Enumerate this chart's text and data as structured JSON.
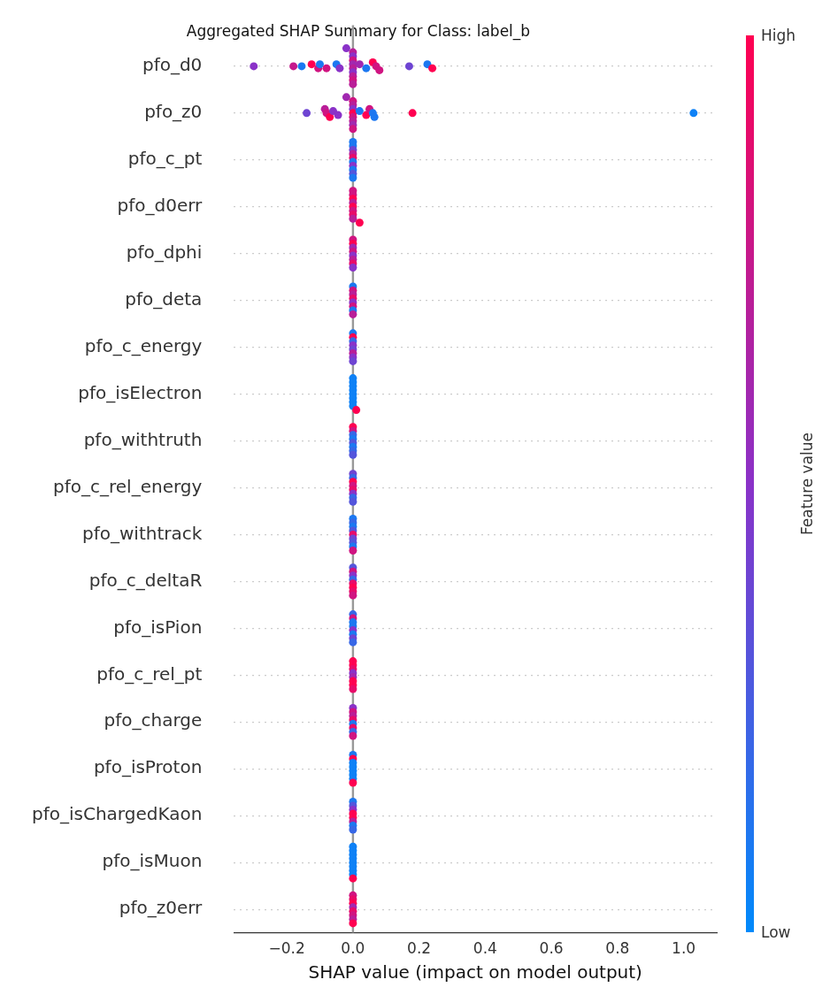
{
  "chart_data": {
    "type": "scatter",
    "orientation": "horizontal",
    "title": "Aggregated SHAP Summary for Class: label_b",
    "xlabel": "SHAP value (impact on model output)",
    "clabel": "Feature value",
    "categories": [
      "pfo_d0",
      "pfo_z0",
      "pfo_c_pt",
      "pfo_d0err",
      "pfo_dphi",
      "pfo_deta",
      "pfo_c_energy",
      "pfo_isElectron",
      "pfo_withtruth",
      "pfo_c_rel_energy",
      "pfo_withtrack",
      "pfo_c_deltaR",
      "pfo_isPion",
      "pfo_c_rel_pt",
      "pfo_charge",
      "pfo_isProton",
      "pfo_isChargedKaon",
      "pfo_isMuon",
      "pfo_z0err"
    ],
    "series": [
      {
        "x": [
          "pfo_d0",
          "pfo_d0",
          "pfo_d0",
          "pfo_d0",
          "pfo_d0",
          "pfo_d0",
          "pfo_d0",
          "pfo_d0",
          "pfo_d0",
          "pfo_d0",
          "pfo_d0",
          "pfo_d0",
          "pfo_d0",
          "pfo_d0",
          "pfo_d0",
          "pfo_d0",
          "pfo_d0",
          "pfo_d0",
          "pfo_d0",
          "pfo_d0",
          "pfo_d0",
          "pfo_d0",
          "pfo_d0",
          "pfo_d0",
          "pfo_d0",
          "pfo_d0",
          "pfo_d0"
        ],
        "values": [
          -0.3,
          -0.18,
          -0.155,
          -0.125,
          -0.105,
          -0.1,
          -0.08,
          -0.05,
          -0.04,
          -0.02,
          0,
          0,
          0,
          0,
          0,
          0,
          0,
          0,
          0,
          0.02,
          0.04,
          0.06,
          0.07,
          0.08,
          0.17,
          0.225,
          0.24
        ],
        "colors": [
          "#8a32c8",
          "#c5198d",
          "#1c78f1",
          "#ff0051",
          "#d01481",
          "#1c78f1",
          "#d01481",
          "#1c78f1",
          "#8a32c8",
          "#8a32c8",
          "#b91e98",
          "#8a32c8",
          "#d01481",
          "#a128b0",
          "#b91e98",
          "#8a32c8",
          "#b91e98",
          "#d01481",
          "#b91e98",
          "#a128b0",
          "#1c78f1",
          "#ff0051",
          "#d01481",
          "#d01481",
          "#6e44d2",
          "#1c78f1",
          "#ff0051"
        ]
      },
      {
        "x": [
          "pfo_z0",
          "pfo_z0",
          "pfo_z0",
          "pfo_z0",
          "pfo_z0",
          "pfo_z0",
          "pfo_z0",
          "pfo_z0",
          "pfo_z0",
          "pfo_z0",
          "pfo_z0",
          "pfo_z0",
          "pfo_z0",
          "pfo_z0",
          "pfo_z0",
          "pfo_z0",
          "pfo_z0",
          "pfo_z0",
          "pfo_z0",
          "pfo_z0",
          "pfo_z0",
          "pfo_z0"
        ],
        "values": [
          -0.14,
          -0.085,
          -0.08,
          -0.07,
          -0.06,
          -0.045,
          -0.02,
          0,
          0,
          0,
          0,
          0,
          0,
          0,
          0,
          0.02,
          0.04,
          0.05,
          0.06,
          0.065,
          0.18,
          1.03
        ],
        "colors": [
          "#6e44d2",
          "#b91e98",
          "#d01481",
          "#ff0051",
          "#8a32c8",
          "#8a32c8",
          "#a128b0",
          "#d01481",
          "#b91e98",
          "#8a32c8",
          "#ff0051",
          "#d01481",
          "#b91e98",
          "#a128b0",
          "#d01481",
          "#1c78f1",
          "#ff0051",
          "#d01481",
          "#1c78f1",
          "#1c78f1",
          "#ff0051",
          "#0e81f6"
        ]
      },
      {
        "x": [
          "pfo_c_pt",
          "pfo_c_pt",
          "pfo_c_pt",
          "pfo_c_pt",
          "pfo_c_pt",
          "pfo_c_pt",
          "pfo_c_pt",
          "pfo_c_pt",
          "pfo_c_pt",
          "pfo_c_pt"
        ],
        "values": [
          0,
          0,
          0,
          0,
          0,
          0,
          0,
          0,
          0,
          0
        ],
        "colors": [
          "#1c78f1",
          "#1c78f1",
          "#6e44d2",
          "#b91e98",
          "#e80a69",
          "#1c78f1",
          "#8a32c8",
          "#1c78f1",
          "#5355dc",
          "#1c78f1"
        ]
      },
      {
        "x": [
          "pfo_d0err",
          "pfo_d0err",
          "pfo_d0err",
          "pfo_d0err",
          "pfo_d0err",
          "pfo_d0err",
          "pfo_d0err",
          "pfo_d0err",
          "pfo_d0err"
        ],
        "values": [
          0,
          0,
          0,
          0,
          0,
          0,
          0,
          0,
          0.02
        ],
        "colors": [
          "#d01481",
          "#d01481",
          "#ff0051",
          "#b91e98",
          "#ff0051",
          "#d01481",
          "#e80a69",
          "#b91e98",
          "#ff0051"
        ]
      },
      {
        "x": [
          "pfo_dphi",
          "pfo_dphi",
          "pfo_dphi",
          "pfo_dphi",
          "pfo_dphi",
          "pfo_dphi",
          "pfo_dphi",
          "pfo_dphi"
        ],
        "values": [
          0,
          0,
          0,
          0,
          0,
          0,
          0,
          0
        ],
        "colors": [
          "#d01481",
          "#ff0051",
          "#a128b0",
          "#d01481",
          "#8a32c8",
          "#b91e98",
          "#e80a69",
          "#8a32c8"
        ]
      },
      {
        "x": [
          "pfo_deta",
          "pfo_deta",
          "pfo_deta",
          "pfo_deta",
          "pfo_deta",
          "pfo_deta",
          "pfo_deta",
          "pfo_deta"
        ],
        "values": [
          0,
          0,
          0,
          0,
          0,
          0,
          0,
          0
        ],
        "colors": [
          "#1c78f1",
          "#d01481",
          "#b91e98",
          "#e80a69",
          "#8a32c8",
          "#d01481",
          "#1c78f1",
          "#b91e98"
        ]
      },
      {
        "x": [
          "pfo_c_energy",
          "pfo_c_energy",
          "pfo_c_energy",
          "pfo_c_energy",
          "pfo_c_energy",
          "pfo_c_energy",
          "pfo_c_energy",
          "pfo_c_energy"
        ],
        "values": [
          0,
          0,
          0,
          0,
          0,
          0,
          0,
          0
        ],
        "colors": [
          "#1c78f1",
          "#ff0051",
          "#3767e7",
          "#8a32c8",
          "#6e44d2",
          "#b91e98",
          "#8a32c8",
          "#6e44d2"
        ]
      },
      {
        "x": [
          "pfo_isElectron",
          "pfo_isElectron",
          "pfo_isElectron",
          "pfo_isElectron",
          "pfo_isElectron",
          "pfo_isElectron",
          "pfo_isElectron",
          "pfo_isElectron",
          "pfo_isElectron"
        ],
        "values": [
          0,
          0,
          0,
          0,
          0,
          0,
          0,
          0,
          0.01
        ],
        "colors": [
          "#0e81f6",
          "#0e81f6",
          "#0e81f6",
          "#0e81f6",
          "#0e81f6",
          "#0e81f6",
          "#0e81f6",
          "#0e81f6",
          "#ff0051"
        ]
      },
      {
        "x": [
          "pfo_withtruth",
          "pfo_withtruth",
          "pfo_withtruth",
          "pfo_withtruth",
          "pfo_withtruth",
          "pfo_withtruth",
          "pfo_withtruth",
          "pfo_withtruth"
        ],
        "values": [
          0,
          0,
          0,
          0,
          0,
          0,
          0,
          0
        ],
        "colors": [
          "#ff0051",
          "#d01481",
          "#3767e7",
          "#1c78f1",
          "#5355dc",
          "#1c78f1",
          "#3767e7",
          "#5355dc"
        ]
      },
      {
        "x": [
          "pfo_c_rel_energy",
          "pfo_c_rel_energy",
          "pfo_c_rel_energy",
          "pfo_c_rel_energy",
          "pfo_c_rel_energy",
          "pfo_c_rel_energy",
          "pfo_c_rel_energy",
          "pfo_c_rel_energy"
        ],
        "values": [
          0,
          0,
          0,
          0,
          0,
          0,
          0,
          0
        ],
        "colors": [
          "#6e44d2",
          "#3767e7",
          "#ff0051",
          "#d01481",
          "#e80a69",
          "#8a32c8",
          "#3767e7",
          "#5355dc"
        ]
      },
      {
        "x": [
          "pfo_withtrack",
          "pfo_withtrack",
          "pfo_withtrack",
          "pfo_withtrack",
          "pfo_withtrack",
          "pfo_withtrack",
          "pfo_withtrack",
          "pfo_withtrack",
          "pfo_withtrack"
        ],
        "values": [
          0,
          0,
          0,
          0,
          0,
          0,
          0,
          0,
          0
        ],
        "colors": [
          "#1c78f1",
          "#3767e7",
          "#1c78f1",
          "#5355dc",
          "#e80a69",
          "#6e44d2",
          "#5355dc",
          "#1c78f1",
          "#d01481"
        ]
      },
      {
        "x": [
          "pfo_c_deltaR",
          "pfo_c_deltaR",
          "pfo_c_deltaR",
          "pfo_c_deltaR",
          "pfo_c_deltaR",
          "pfo_c_deltaR",
          "pfo_c_deltaR",
          "pfo_c_deltaR"
        ],
        "values": [
          0,
          0,
          0,
          0,
          0,
          0,
          0,
          0
        ],
        "colors": [
          "#5355dc",
          "#d01481",
          "#8a32c8",
          "#3767e7",
          "#e80a69",
          "#ff0051",
          "#e80a69",
          "#d01481"
        ]
      },
      {
        "x": [
          "pfo_isPion",
          "pfo_isPion",
          "pfo_isPion",
          "pfo_isPion",
          "pfo_isPion",
          "pfo_isPion",
          "pfo_isPion",
          "pfo_isPion"
        ],
        "values": [
          0,
          0,
          0,
          0,
          0,
          0,
          0,
          0
        ],
        "colors": [
          "#3767e7",
          "#d01481",
          "#1c78f1",
          "#1c78f1",
          "#8a32c8",
          "#1c78f1",
          "#6e44d2",
          "#3767e7"
        ]
      },
      {
        "x": [
          "pfo_c_rel_pt",
          "pfo_c_rel_pt",
          "pfo_c_rel_pt",
          "pfo_c_rel_pt",
          "pfo_c_rel_pt",
          "pfo_c_rel_pt",
          "pfo_c_rel_pt",
          "pfo_c_rel_pt"
        ],
        "values": [
          0,
          0,
          0,
          0,
          0,
          0,
          0,
          0
        ],
        "colors": [
          "#ff0051",
          "#ff0051",
          "#e80a69",
          "#8a32c8",
          "#a128b0",
          "#ff0051",
          "#ff0051",
          "#e80a69"
        ]
      },
      {
        "x": [
          "pfo_charge",
          "pfo_charge",
          "pfo_charge",
          "pfo_charge",
          "pfo_charge",
          "pfo_charge",
          "pfo_charge",
          "pfo_charge"
        ],
        "values": [
          0,
          0,
          0,
          0,
          0,
          0,
          0,
          0
        ],
        "colors": [
          "#8a32c8",
          "#d01481",
          "#b91e98",
          "#e80a69",
          "#1c78f1",
          "#e80a69",
          "#3767e7",
          "#d01481"
        ]
      },
      {
        "x": [
          "pfo_isProton",
          "pfo_isProton",
          "pfo_isProton",
          "pfo_isProton",
          "pfo_isProton",
          "pfo_isProton",
          "pfo_isProton",
          "pfo_isProton"
        ],
        "values": [
          0,
          0,
          0,
          0,
          0,
          0,
          0,
          0
        ],
        "colors": [
          "#1c78f1",
          "#ff0051",
          "#0e81f6",
          "#0e81f6",
          "#0e81f6",
          "#0e81f6",
          "#0e81f6",
          "#ff0051"
        ]
      },
      {
        "x": [
          "pfo_isChargedKaon",
          "pfo_isChargedKaon",
          "pfo_isChargedKaon",
          "pfo_isChargedKaon",
          "pfo_isChargedKaon",
          "pfo_isChargedKaon",
          "pfo_isChargedKaon",
          "pfo_isChargedKaon"
        ],
        "values": [
          0,
          0,
          0,
          0,
          0,
          0,
          0,
          0
        ],
        "colors": [
          "#1c78f1",
          "#5355dc",
          "#8a32c8",
          "#ff0051",
          "#ff0051",
          "#b91e98",
          "#1c78f1",
          "#3767e7"
        ]
      },
      {
        "x": [
          "pfo_isMuon",
          "pfo_isMuon",
          "pfo_isMuon",
          "pfo_isMuon",
          "pfo_isMuon",
          "pfo_isMuon",
          "pfo_isMuon",
          "pfo_isMuon",
          "pfo_isMuon"
        ],
        "values": [
          0,
          0,
          0,
          0,
          0,
          0,
          0,
          0,
          0
        ],
        "colors": [
          "#0e81f6",
          "#0e81f6",
          "#0e81f6",
          "#0e81f6",
          "#0e81f6",
          "#0e81f6",
          "#0e81f6",
          "#0e81f6",
          "#ff0051"
        ]
      },
      {
        "x": [
          "pfo_z0err",
          "pfo_z0err",
          "pfo_z0err",
          "pfo_z0err",
          "pfo_z0err",
          "pfo_z0err",
          "pfo_z0err",
          "pfo_z0err"
        ],
        "values": [
          0,
          0,
          0,
          0,
          0,
          0,
          0,
          0
        ],
        "colors": [
          "#d01481",
          "#e80a69",
          "#ff0051",
          "#a128b0",
          "#e80a69",
          "#d01481",
          "#b91e98",
          "#ff0051"
        ]
      }
    ],
    "xlim": [
      -0.36,
      1.1
    ],
    "xticks": [
      {
        "value": -0.2,
        "label": "−0.2"
      },
      {
        "value": 0,
        "label": "0.0"
      },
      {
        "value": 0.2,
        "label": "0.2"
      },
      {
        "value": 0.4,
        "label": "0.4"
      },
      {
        "value": 0.6,
        "label": "0.6"
      },
      {
        "value": 0.8,
        "label": "0.8"
      },
      {
        "value": 1.0,
        "label": "1.0"
      }
    ],
    "ref_lines": [
      {
        "axis": "x",
        "value": 0,
        "color": "#999999"
      }
    ],
    "grid": "y",
    "marker": "circle",
    "clim": [
      0,
      1
    ],
    "cticks": [
      {
        "value": 0,
        "label": "Low"
      },
      {
        "value": 1,
        "label": "High"
      }
    ]
  }
}
